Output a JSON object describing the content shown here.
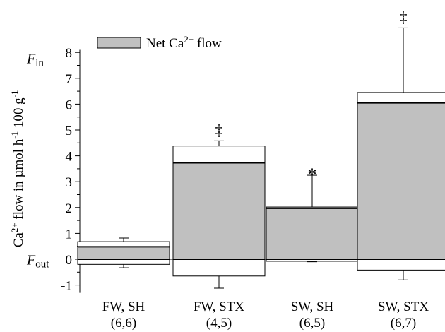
{
  "chart_data": {
    "type": "bar",
    "ylabel": "Ca2+ flow in µmol h-1 100 g-1",
    "ylim": [
      -1.3,
      9.0
    ],
    "yticks": [
      -1,
      0,
      1,
      2,
      3,
      4,
      5,
      6,
      7,
      8
    ],
    "legend": {
      "label": "Net Ca2+ flow",
      "placement": "top-left",
      "color": "#c0c0c0"
    },
    "fin_label": "Fin",
    "fout_label": "Fout",
    "categories": [
      "FW, SH",
      "FW, STX",
      "SW, SH",
      "SW, STX"
    ],
    "n_labels": [
      "(6,6)",
      "(4,5)",
      "(6,5)",
      "(6,7)"
    ],
    "series": [
      {
        "name": "Fin",
        "values": [
          0.68,
          4.38,
          2.02,
          6.45
        ],
        "error_upper": [
          0.82,
          4.58,
          3.25,
          8.95
        ]
      },
      {
        "name": "Fout",
        "values": [
          -0.2,
          -0.65,
          -0.08,
          -0.42
        ],
        "error_lower": [
          -0.33,
          -1.12,
          -0.1,
          -0.8
        ]
      },
      {
        "name": "Net Ca2+ flow",
        "values": [
          0.48,
          3.73,
          1.97,
          6.05
        ]
      }
    ],
    "significance": [
      "",
      "‡",
      "*",
      "‡"
    ],
    "grid": false
  }
}
